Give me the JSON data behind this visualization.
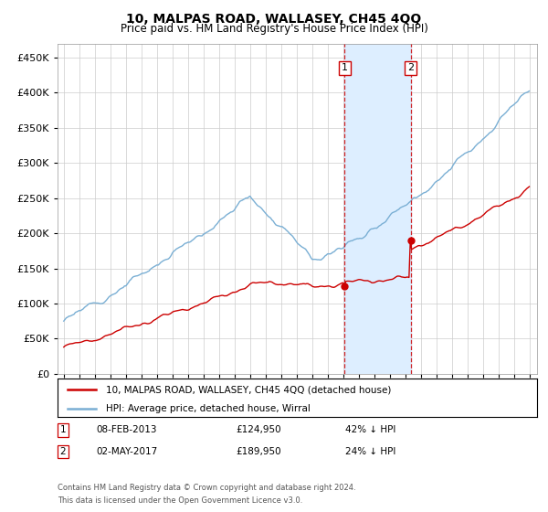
{
  "title": "10, MALPAS ROAD, WALLASEY, CH45 4QQ",
  "subtitle": "Price paid vs. HM Land Registry's House Price Index (HPI)",
  "legend_line1": "10, MALPAS ROAD, WALLASEY, CH45 4QQ (detached house)",
  "legend_line2": "HPI: Average price, detached house, Wirral",
  "transaction1_date": "08-FEB-2013",
  "transaction1_price": "£124,950",
  "transaction1_hpi": "42% ↓ HPI",
  "transaction1_year": 2013.1,
  "transaction1_value": 124950,
  "transaction2_date": "02-MAY-2017",
  "transaction2_price": "£189,950",
  "transaction2_hpi": "24% ↓ HPI",
  "transaction2_year": 2017.35,
  "transaction2_value": 189950,
  "footnote1": "Contains HM Land Registry data © Crown copyright and database right 2024.",
  "footnote2": "This data is licensed under the Open Government Licence v3.0.",
  "ylim": [
    0,
    470000
  ],
  "yticks": [
    0,
    50000,
    100000,
    150000,
    200000,
    250000,
    300000,
    350000,
    400000,
    450000
  ],
  "red_color": "#cc0000",
  "blue_color": "#7aafd4",
  "shade_color": "#ddeeff",
  "background_color": "#ffffff",
  "grid_color": "#cccccc"
}
